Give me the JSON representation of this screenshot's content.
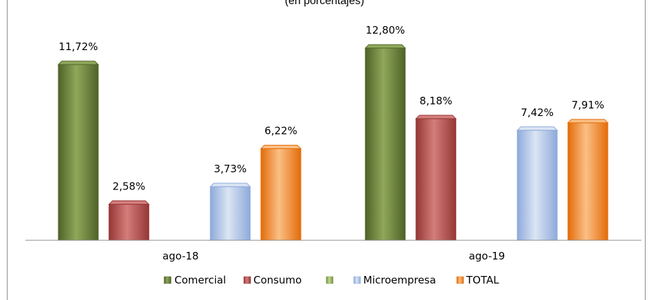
{
  "chart_data": {
    "type": "bar",
    "subtitle": "(en porcentajes)",
    "categories": [
      "ago-18",
      "ago-19"
    ],
    "series": [
      {
        "name": "Comercial",
        "values": [
          11.72,
          12.8
        ],
        "labels": [
          "11,72%",
          "12,80%"
        ],
        "color": "#4f6228",
        "top_color": "#8fa85a"
      },
      {
        "name": "Consumo",
        "values": [
          2.58,
          8.18
        ],
        "labels": [
          "2,58%",
          "8,18%"
        ],
        "color": "#953735",
        "top_color": "#d47d7b"
      },
      {
        "name": "",
        "values": [
          null,
          null
        ],
        "labels": [
          "",
          ""
        ],
        "color": "#77933c",
        "top_color": "#c3d69b"
      },
      {
        "name": "Microempresa",
        "values": [
          3.73,
          7.42
        ],
        "labels": [
          "3,73%",
          "7,42%"
        ],
        "color": "#8eaadb",
        "top_color": "#dbe5f3"
      },
      {
        "name": "TOTAL",
        "values": [
          6.22,
          7.91
        ],
        "labels": [
          "6,22%",
          "7,91%"
        ],
        "color": "#e36c09",
        "top_color": "#fbbf85"
      }
    ],
    "ylim": [
      0,
      14
    ],
    "grid": false,
    "legend_position": "bottom"
  }
}
